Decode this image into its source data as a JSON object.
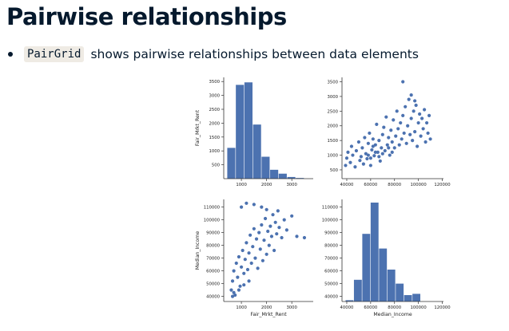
{
  "slide": {
    "title": "Pairwise relationships",
    "bullet_code": "PairGrid",
    "bullet_text": "shows pairwise relationships between data elements"
  },
  "colors": {
    "mark": "#4c72b0",
    "axis": "#333333",
    "title_text": "#05192d",
    "code_bg": "#efebe4"
  },
  "chart_data": [
    {
      "type": "bar",
      "panel": "top-left",
      "xlabel": "",
      "ylabel": "Fair_Mrkt_Rent",
      "x_ticks": [
        1000,
        2000,
        3000
      ],
      "y_ticks": [
        500,
        1000,
        1500,
        2000,
        2500,
        3000,
        3500
      ],
      "xlim": [
        300,
        3850
      ],
      "ylim": [
        0,
        3650
      ],
      "bins": [
        {
          "x0": 440,
          "x1": 780,
          "value": 1110
        },
        {
          "x0": 780,
          "x1": 1120,
          "value": 3380
        },
        {
          "x0": 1120,
          "x1": 1460,
          "value": 3470
        },
        {
          "x0": 1460,
          "x1": 1800,
          "value": 1950
        },
        {
          "x0": 1800,
          "x1": 2140,
          "value": 790
        },
        {
          "x0": 2140,
          "x1": 2480,
          "value": 320
        },
        {
          "x0": 2480,
          "x1": 2820,
          "value": 180
        },
        {
          "x0": 2820,
          "x1": 3160,
          "value": 60
        },
        {
          "x0": 3160,
          "x1": 3500,
          "value": 25
        }
      ]
    },
    {
      "type": "scatter",
      "panel": "top-right",
      "xlabel": "",
      "ylabel": "",
      "x_variable": "Median_Income",
      "y_variable": "Fair_Mrkt_Rent",
      "x_ticks": [
        40000,
        60000,
        80000,
        100000,
        120000
      ],
      "y_ticks": [
        500,
        1000,
        1500,
        2000,
        2500,
        3000,
        3500
      ],
      "xlim": [
        36000,
        121000
      ],
      "ylim": [
        200,
        3650
      ],
      "points": [
        [
          39000,
          650
        ],
        [
          40000,
          900
        ],
        [
          41000,
          1100
        ],
        [
          43000,
          750
        ],
        [
          44000,
          1300
        ],
        [
          45000,
          1000
        ],
        [
          47000,
          600
        ],
        [
          48000,
          1150
        ],
        [
          50000,
          1450
        ],
        [
          51000,
          820
        ],
        [
          52000,
          950
        ],
        [
          53000,
          1250
        ],
        [
          54000,
          700
        ],
        [
          55000,
          1600
        ],
        [
          56000,
          1050
        ],
        [
          57000,
          880
        ],
        [
          58000,
          1400
        ],
        [
          59000,
          1750
        ],
        [
          60000,
          650
        ],
        [
          61000,
          1180
        ],
        [
          62000,
          1550
        ],
        [
          63000,
          980
        ],
        [
          64000,
          1350
        ],
        [
          65000,
          2050
        ],
        [
          66000,
          1100
        ],
        [
          67000,
          1500
        ],
        [
          68000,
          800
        ],
        [
          69000,
          1250
        ],
        [
          70000,
          1700
        ],
        [
          71000,
          1950
        ],
        [
          72000,
          1150
        ],
        [
          73000,
          2300
        ],
        [
          74000,
          1350
        ],
        [
          75000,
          1600
        ],
        [
          76000,
          1000
        ],
        [
          77000,
          1850
        ],
        [
          78000,
          1450
        ],
        [
          79000,
          2200
        ],
        [
          80000,
          1250
        ],
        [
          81000,
          1650
        ],
        [
          82000,
          2500
        ],
        [
          83000,
          1900
        ],
        [
          84000,
          1350
        ],
        [
          85000,
          2100
        ],
        [
          86000,
          1550
        ],
        [
          87000,
          2350
        ],
        [
          88000,
          1750
        ],
        [
          89000,
          2650
        ],
        [
          90000,
          1400
        ],
        [
          91000,
          2000
        ],
        [
          92000,
          2900
        ],
        [
          93000,
          1700
        ],
        [
          94000,
          2250
        ],
        [
          95000,
          1500
        ],
        [
          96000,
          2500
        ],
        [
          97000,
          1800
        ],
        [
          98000,
          2700
        ],
        [
          99000,
          1300
        ],
        [
          100000,
          2100
        ],
        [
          101000,
          2400
        ],
        [
          102000,
          1650
        ],
        [
          103000,
          2250
        ],
        [
          104000,
          1900
        ],
        [
          105000,
          2550
        ],
        [
          106000,
          1450
        ],
        [
          107000,
          2100
        ],
        [
          108000,
          1750
        ],
        [
          109000,
          2350
        ],
        [
          110000,
          1550
        ],
        [
          87000,
          3500
        ],
        [
          94000,
          3050
        ],
        [
          97000,
          2850
        ],
        [
          60000,
          900
        ],
        [
          64000,
          1100
        ],
        [
          67000,
          950
        ],
        [
          70000,
          1050
        ],
        [
          62000,
          1300
        ],
        [
          58000,
          1000
        ],
        [
          75000,
          1250
        ],
        [
          78000,
          1100
        ]
      ]
    },
    {
      "type": "scatter",
      "panel": "bottom-left",
      "xlabel": "Fair_Mrkt_Rent",
      "ylabel": "Median_Income",
      "x_variable": "Fair_Mrkt_Rent",
      "y_variable": "Median_Income",
      "x_ticks": [
        1000,
        2000,
        3000
      ],
      "y_ticks": [
        40000,
        50000,
        60000,
        70000,
        80000,
        90000,
        100000,
        110000
      ],
      "xlim": [
        300,
        3850
      ],
      "ylim": [
        36000,
        116000
      ],
      "points": [
        [
          600,
          45000
        ],
        [
          650,
          52000
        ],
        [
          700,
          60000
        ],
        [
          750,
          41000
        ],
        [
          800,
          66000
        ],
        [
          850,
          55000
        ],
        [
          900,
          71000
        ],
        [
          950,
          48000
        ],
        [
          1000,
          63000
        ],
        [
          1050,
          76000
        ],
        [
          1100,
          58000
        ],
        [
          1150,
          69000
        ],
        [
          1200,
          82000
        ],
        [
          1250,
          61000
        ],
        [
          1300,
          74000
        ],
        [
          1350,
          88000
        ],
        [
          1400,
          66000
        ],
        [
          1450,
          79000
        ],
        [
          1500,
          93000
        ],
        [
          1550,
          70000
        ],
        [
          1600,
          85000
        ],
        [
          1650,
          62000
        ],
        [
          1700,
          90000
        ],
        [
          1750,
          77000
        ],
        [
          1800,
          96000
        ],
        [
          1850,
          68000
        ],
        [
          1900,
          84000
        ],
        [
          1950,
          101000
        ],
        [
          2000,
          73000
        ],
        [
          2050,
          91000
        ],
        [
          2100,
          80000
        ],
        [
          2150,
          95000
        ],
        [
          2200,
          87000
        ],
        [
          2250,
          104000
        ],
        [
          2300,
          76000
        ],
        [
          2350,
          98000
        ],
        [
          2400,
          89000
        ],
        [
          2450,
          107000
        ],
        [
          2500,
          94000
        ],
        [
          2600,
          86000
        ],
        [
          2700,
          100000
        ],
        [
          2800,
          92000
        ],
        [
          3000,
          103000
        ],
        [
          3200,
          87000
        ],
        [
          3500,
          86000
        ],
        [
          1000,
          110000
        ],
        [
          1200,
          113000
        ],
        [
          1500,
          112000
        ],
        [
          1800,
          110000
        ],
        [
          2000,
          108000
        ],
        [
          650,
          40000
        ],
        [
          700,
          43000
        ],
        [
          900,
          45000
        ],
        [
          1100,
          49000
        ],
        [
          1300,
          52000
        ]
      ]
    },
    {
      "type": "bar",
      "panel": "bottom-right",
      "xlabel": "Median_Income",
      "ylabel": "",
      "x_ticks": [
        40000,
        60000,
        80000,
        100000,
        120000
      ],
      "y_ticks": [
        40000,
        50000,
        60000,
        70000,
        80000,
        90000,
        100000,
        110000
      ],
      "xlim": [
        36000,
        121000
      ],
      "ylim": [
        36000,
        116000
      ],
      "bins": [
        {
          "x0": 39000,
          "x1": 46000,
          "value": 37000
        },
        {
          "x0": 46000,
          "x1": 53000,
          "value": 53000
        },
        {
          "x0": 53000,
          "x1": 60000,
          "value": 89000
        },
        {
          "x0": 60000,
          "x1": 67000,
          "value": 113500
        },
        {
          "x0": 67000,
          "x1": 74000,
          "value": 77500
        },
        {
          "x0": 74000,
          "x1": 81000,
          "value": 61000
        },
        {
          "x0": 81000,
          "x1": 88000,
          "value": 50000
        },
        {
          "x0": 88000,
          "x1": 95000,
          "value": 41000
        },
        {
          "x0": 95000,
          "x1": 102000,
          "value": 42000
        }
      ]
    }
  ]
}
